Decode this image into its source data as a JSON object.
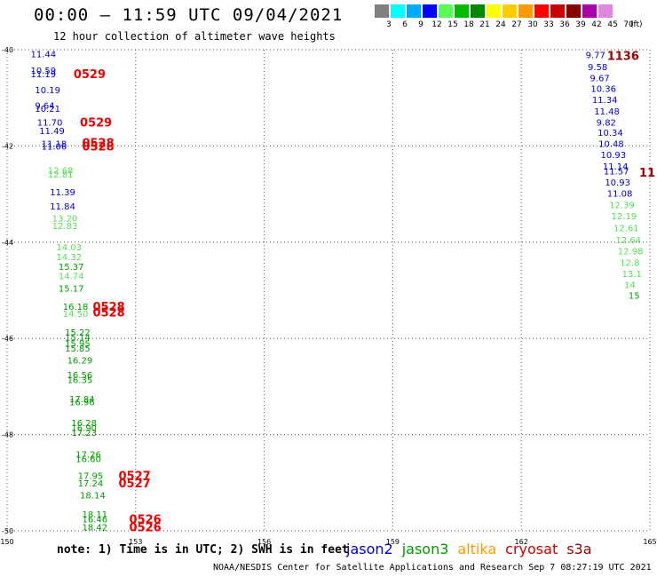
{
  "header": {
    "title": "00:00 – 11:59 UTC 09/04/2021",
    "subtitle": "12 hour collection of altimeter wave heights"
  },
  "scale": {
    "labels": [
      "3",
      "6",
      "9",
      "12",
      "15",
      "18",
      "21",
      "24",
      "27",
      "30",
      "33",
      "36",
      "39",
      "42",
      "45",
      "70"
    ],
    "unit": "(ft)",
    "colors": [
      "#808080",
      "#00ffff",
      "#00aaff",
      "#0000ff",
      "#55ff55",
      "#00bb00",
      "#008800",
      "#ffff00",
      "#ffcc00",
      "#ff9900",
      "#ff0000",
      "#cc0000",
      "#880000",
      "#aa00aa",
      "#dd88dd",
      "#ffffff"
    ]
  },
  "note": "note:  1) Time is in UTC;  2) SWH is in feet",
  "satellites": [
    {
      "name": "jason2",
      "color": "#0000cc"
    },
    {
      "name": "jason3",
      "color": "#009900"
    },
    {
      "name": "altika",
      "color": "#ff9900"
    },
    {
      "name": "cryosat",
      "color": "#cc0000"
    },
    {
      "name": "s3a",
      "color": "#990000"
    }
  ],
  "footer": "NOAA/NESDIS Center for Satellite Applications and Research   Sep  7 08:27:19 UTC 2021",
  "chart_data": {
    "type": "scatter",
    "xlim": [
      150,
      165
    ],
    "ylim": [
      -50,
      -40
    ],
    "x_ticks": [
      150,
      153,
      156,
      159,
      162,
      165
    ],
    "y_ticks": [
      -40,
      -42,
      -44,
      -46,
      -48,
      -50
    ],
    "x_tick_labels": [
      "150",
      "153",
      "156",
      "159",
      "162",
      "165"
    ],
    "y_tick_labels": [
      "-40",
      "-42",
      "-44",
      "-46",
      "-48",
      "-50"
    ],
    "grid": true,
    "points": [
      {
        "x": 150.55,
        "y": -40.08,
        "label": "11.44",
        "color": "#0000cc"
      },
      {
        "x": 150.55,
        "y": -40.42,
        "label": "10.59",
        "color": "#0000cc"
      },
      {
        "x": 150.55,
        "y": -40.5,
        "label": "11.19",
        "color": "#0000cc"
      },
      {
        "x": 150.65,
        "y": -40.83,
        "label": "10.19",
        "color": "#0000cc"
      },
      {
        "x": 150.65,
        "y": -41.15,
        "label": "9.64",
        "color": "#0000cc"
      },
      {
        "x": 150.65,
        "y": -41.22,
        "label": "10.21",
        "color": "#0000cc"
      },
      {
        "x": 150.7,
        "y": -41.5,
        "label": "11.70",
        "color": "#0000cc"
      },
      {
        "x": 150.75,
        "y": -41.68,
        "label": "11.49",
        "color": "#0000cc"
      },
      {
        "x": 150.8,
        "y": -41.95,
        "label": "11.18",
        "color": "#0000cc"
      },
      {
        "x": 150.8,
        "y": -42.0,
        "label": "11.06",
        "color": "#0000cc"
      },
      {
        "x": 150.95,
        "y": -42.5,
        "label": "12.68",
        "color": "#55dd55"
      },
      {
        "x": 150.95,
        "y": -42.58,
        "label": "12.81",
        "color": "#55dd55"
      },
      {
        "x": 151.0,
        "y": -42.95,
        "label": "11.39",
        "color": "#0000cc"
      },
      {
        "x": 151.0,
        "y": -43.25,
        "label": "11.84",
        "color": "#0000cc"
      },
      {
        "x": 151.05,
        "y": -43.5,
        "label": "13.20",
        "color": "#55dd55"
      },
      {
        "x": 151.05,
        "y": -43.65,
        "label": "12.83",
        "color": "#55dd55"
      },
      {
        "x": 151.15,
        "y": -44.1,
        "label": "14.03",
        "color": "#55dd55"
      },
      {
        "x": 151.15,
        "y": -44.3,
        "label": "14.32",
        "color": "#55dd55"
      },
      {
        "x": 151.2,
        "y": -44.5,
        "label": "15.37",
        "color": "#009900"
      },
      {
        "x": 151.2,
        "y": -44.7,
        "label": "14.74",
        "color": "#55dd55"
      },
      {
        "x": 151.2,
        "y": -44.95,
        "label": "15.17",
        "color": "#009900"
      },
      {
        "x": 151.3,
        "y": -45.33,
        "label": "16.18",
        "color": "#009900"
      },
      {
        "x": 151.3,
        "y": -45.48,
        "label": "14.50",
        "color": "#55dd55"
      },
      {
        "x": 151.35,
        "y": -45.87,
        "label": "15.22",
        "color": "#009900"
      },
      {
        "x": 151.35,
        "y": -45.97,
        "label": "15.14",
        "color": "#009900"
      },
      {
        "x": 151.35,
        "y": -46.1,
        "label": "15.95",
        "color": "#009900"
      },
      {
        "x": 151.35,
        "y": -46.2,
        "label": "15.85",
        "color": "#009900"
      },
      {
        "x": 151.4,
        "y": -46.45,
        "label": "16.29",
        "color": "#009900"
      },
      {
        "x": 151.4,
        "y": -46.75,
        "label": "16.56",
        "color": "#009900"
      },
      {
        "x": 151.4,
        "y": -46.85,
        "label": "16.35",
        "color": "#009900"
      },
      {
        "x": 151.45,
        "y": -47.25,
        "label": "17.84",
        "color": "#009900"
      },
      {
        "x": 151.45,
        "y": -47.32,
        "label": "16.96",
        "color": "#009900"
      },
      {
        "x": 151.5,
        "y": -47.75,
        "label": "16.28",
        "color": "#009900"
      },
      {
        "x": 151.5,
        "y": -47.85,
        "label": "16.90",
        "color": "#009900"
      },
      {
        "x": 151.5,
        "y": -47.95,
        "label": "17.23",
        "color": "#009900"
      },
      {
        "x": 151.6,
        "y": -48.4,
        "label": "17.26",
        "color": "#009900"
      },
      {
        "x": 151.6,
        "y": -48.5,
        "label": "16.60",
        "color": "#009900"
      },
      {
        "x": 151.65,
        "y": -48.85,
        "label": "17.95",
        "color": "#009900"
      },
      {
        "x": 151.65,
        "y": -49.0,
        "label": "17.24",
        "color": "#009900"
      },
      {
        "x": 151.7,
        "y": -49.25,
        "label": "18.14",
        "color": "#009900"
      },
      {
        "x": 151.75,
        "y": -49.65,
        "label": "18.11",
        "color": "#009900"
      },
      {
        "x": 151.75,
        "y": -49.75,
        "label": "16.46",
        "color": "#009900"
      },
      {
        "x": 151.75,
        "y": -49.92,
        "label": "18.42",
        "color": "#009900"
      },
      {
        "x": 163.5,
        "y": -40.1,
        "label": "9.77",
        "color": "#0000cc"
      },
      {
        "x": 163.55,
        "y": -40.35,
        "label": "9.58",
        "color": "#0000cc"
      },
      {
        "x": 163.6,
        "y": -40.58,
        "label": "9.67",
        "color": "#0000cc"
      },
      {
        "x": 163.62,
        "y": -40.8,
        "label": "10.36",
        "color": "#0000cc"
      },
      {
        "x": 163.65,
        "y": -41.03,
        "label": "11.34",
        "color": "#0000cc"
      },
      {
        "x": 163.7,
        "y": -41.27,
        "label": "11.48",
        "color": "#0000cc"
      },
      {
        "x": 163.75,
        "y": -41.5,
        "label": "9.82",
        "color": "#0000cc"
      },
      {
        "x": 163.78,
        "y": -41.72,
        "label": "10.34",
        "color": "#0000cc"
      },
      {
        "x": 163.8,
        "y": -41.95,
        "label": "10.48",
        "color": "#0000cc"
      },
      {
        "x": 163.85,
        "y": -42.18,
        "label": "10.93",
        "color": "#0000cc"
      },
      {
        "x": 163.9,
        "y": -42.42,
        "label": "11.14",
        "color": "#0000cc"
      },
      {
        "x": 163.92,
        "y": -42.52,
        "label": "11.57",
        "color": "#0000cc"
      },
      {
        "x": 163.95,
        "y": -42.75,
        "label": "10.93",
        "color": "#0000cc"
      },
      {
        "x": 164.0,
        "y": -42.98,
        "label": "11.08",
        "color": "#0000cc"
      },
      {
        "x": 164.05,
        "y": -43.22,
        "label": "12.39",
        "color": "#55dd55"
      },
      {
        "x": 164.1,
        "y": -43.45,
        "label": "12.19",
        "color": "#55dd55"
      },
      {
        "x": 164.15,
        "y": -43.7,
        "label": "12.61",
        "color": "#55dd55"
      },
      {
        "x": 164.2,
        "y": -43.95,
        "label": "12.64",
        "color": "#55dd55"
      },
      {
        "x": 164.25,
        "y": -44.18,
        "label": "12.98",
        "color": "#55dd55"
      },
      {
        "x": 164.3,
        "y": -44.42,
        "label": "12.8",
        "color": "#55dd55"
      },
      {
        "x": 164.35,
        "y": -44.65,
        "label": "13.1",
        "color": "#55dd55"
      },
      {
        "x": 164.4,
        "y": -44.88,
        "label": "14",
        "color": "#55dd55"
      },
      {
        "x": 164.5,
        "y": -45.1,
        "label": "15",
        "color": "#009900"
      }
    ],
    "time_labels": [
      {
        "x": 151.55,
        "y": -40.5,
        "label": "0529",
        "color": "#ee0000"
      },
      {
        "x": 151.7,
        "y": -41.5,
        "label": "0529",
        "color": "#ee0000"
      },
      {
        "x": 151.75,
        "y": -41.93,
        "label": "0528",
        "color": "#ee0000"
      },
      {
        "x": 151.75,
        "y": -42.0,
        "label": "0528",
        "color": "#ee0000"
      },
      {
        "x": 152.0,
        "y": -45.33,
        "label": "0528",
        "color": "#ee0000"
      },
      {
        "x": 152.0,
        "y": -45.45,
        "label": "0528",
        "color": "#ee0000"
      },
      {
        "x": 152.6,
        "y": -48.85,
        "label": "0527",
        "color": "#ee0000"
      },
      {
        "x": 152.6,
        "y": -49.0,
        "label": "0527",
        "color": "#ee0000"
      },
      {
        "x": 152.85,
        "y": -49.75,
        "label": "0526",
        "color": "#ee0000"
      },
      {
        "x": 152.85,
        "y": -49.92,
        "label": "0526",
        "color": "#ee0000"
      },
      {
        "x": 164.0,
        "y": -40.12,
        "label": "1136",
        "color": "#990000"
      },
      {
        "x": 164.75,
        "y": -42.55,
        "label": "11",
        "color": "#990000"
      }
    ]
  }
}
